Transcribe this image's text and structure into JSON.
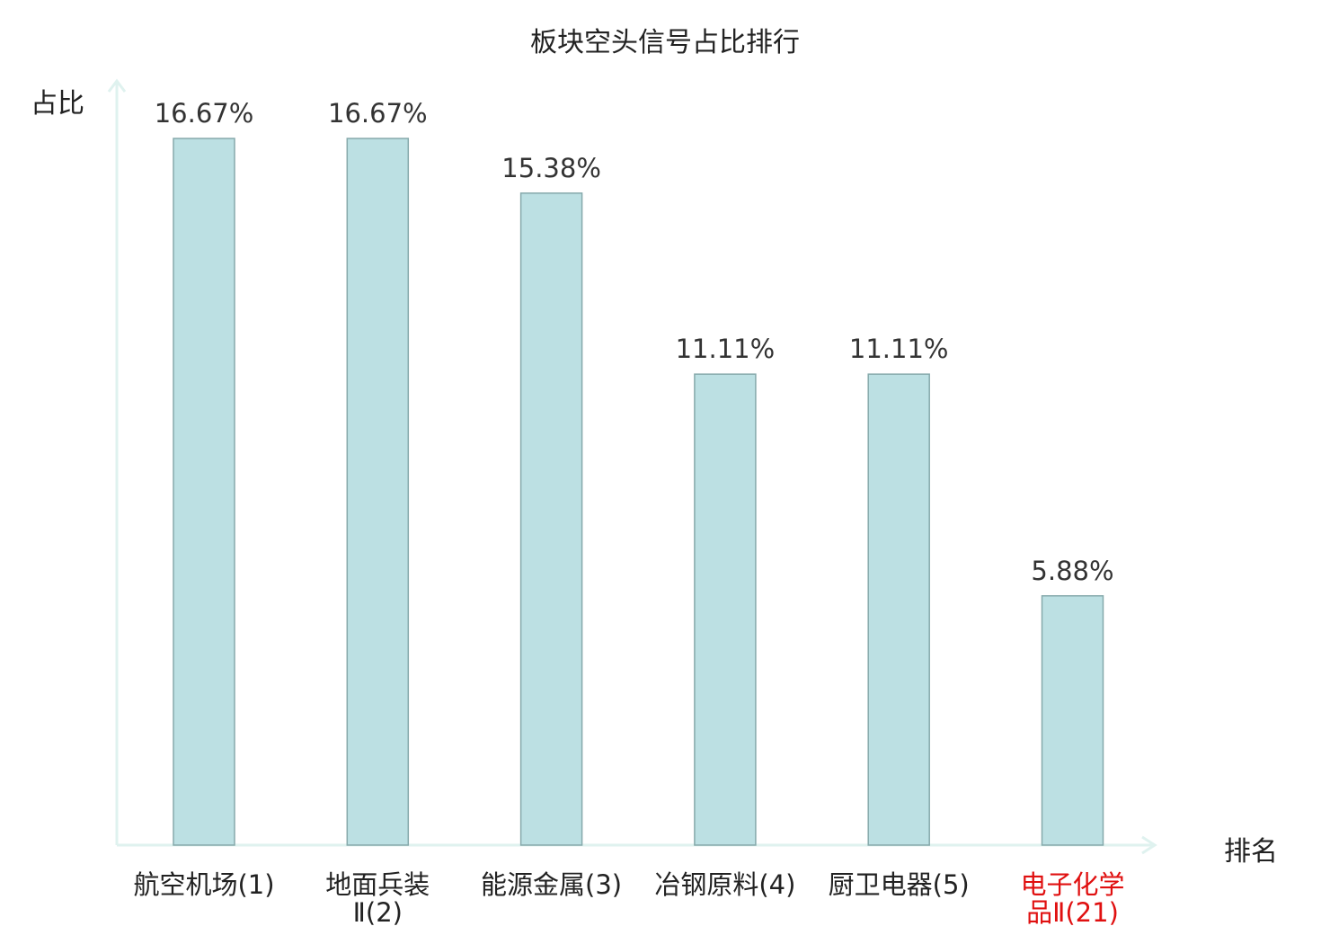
{
  "chart_data": {
    "type": "bar",
    "title": "板块空头信号占比排行",
    "xlabel": "排名",
    "ylabel": "占比",
    "categories": [
      [
        "航空机场(1)"
      ],
      [
        "地面兵装",
        "Ⅱ(2)"
      ],
      [
        "能源金属(3)"
      ],
      [
        "冶钢原料(4)"
      ],
      [
        "厨卫电器(5)"
      ],
      [
        "电子化学",
        "品Ⅱ(21)"
      ]
    ],
    "values": [
      16.67,
      16.67,
      15.38,
      11.11,
      11.11,
      5.88
    ],
    "value_labels": [
      "16.67%",
      "16.67%",
      "15.38%",
      "11.11%",
      "11.11%",
      "5.88%"
    ],
    "highlight_index": 5,
    "ylim": [
      0,
      17.5
    ],
    "grid": false,
    "colors": {
      "bar_fill": "#bce0e3",
      "bar_stroke": "#86a9ab",
      "axis": "#dff2ef",
      "label": "#222222",
      "highlight_label": "#e01010"
    }
  }
}
